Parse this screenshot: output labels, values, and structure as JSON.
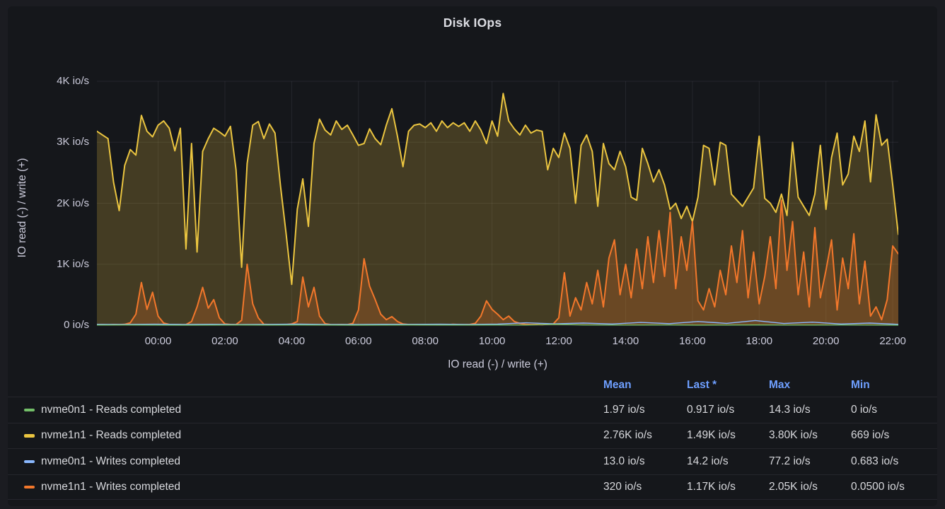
{
  "panel": {
    "title": "Disk IOps"
  },
  "chart": {
    "y_axis": {
      "title": "IO read (-) / write (+)",
      "ticks": [
        "4K io/s",
        "3K io/s",
        "2K io/s",
        "1K io/s",
        "0 io/s"
      ]
    },
    "x_axis": {
      "title": "IO read (-) / write (+)",
      "ticks": [
        "00:00",
        "02:00",
        "04:00",
        "06:00",
        "08:00",
        "10:00",
        "12:00",
        "14:00",
        "16:00",
        "18:00",
        "20:00",
        "22:00"
      ]
    }
  },
  "chart_data": {
    "type": "area",
    "title": "Disk IOps",
    "xlabel": "IO read (-) / write (+)",
    "ylabel": "IO read (-) / write (+)",
    "y_unit": "io/s",
    "ylim": [
      0,
      4000
    ],
    "y_tick_values": [
      0,
      1000,
      2000,
      3000,
      4000
    ],
    "x_range_hours": [
      -1.8333,
      22.1667
    ],
    "x_tick_hours": [
      0,
      2,
      4,
      6,
      8,
      10,
      12,
      14,
      16,
      18,
      20,
      22
    ],
    "x_tick_labels": [
      "00:00",
      "02:00",
      "04:00",
      "06:00",
      "08:00",
      "10:00",
      "12:00",
      "14:00",
      "16:00",
      "18:00",
      "20:00",
      "22:00"
    ],
    "grid": true,
    "legend_position": "bottom-table",
    "fill_opacity": 0.22,
    "series": [
      {
        "name": "nvme0n1 - Reads completed",
        "color": "#73BF69",
        "draw_order": 4,
        "line_width": 1.4,
        "fill": false,
        "values": [
          2,
          3,
          2,
          1,
          2,
          4,
          2,
          3,
          2,
          1,
          2,
          3,
          2,
          2,
          3,
          2,
          14,
          3,
          2,
          2,
          3,
          1,
          2,
          3,
          2,
          2,
          3,
          2,
          1
        ]
      },
      {
        "name": "nvme1n1 - Reads completed",
        "color": "#EBC540",
        "draw_order": 1,
        "line_width": 2,
        "fill": true,
        "values": [
          3180,
          3120,
          3060,
          2340,
          1880,
          2620,
          2880,
          2790,
          3440,
          3180,
          3090,
          3280,
          3350,
          3230,
          2860,
          3230,
          1250,
          2980,
          1200,
          2850,
          3060,
          3230,
          3170,
          3100,
          3260,
          2550,
          950,
          2650,
          3280,
          3340,
          3060,
          3300,
          3150,
          2280,
          1500,
          669,
          1900,
          2400,
          1620,
          2980,
          3380,
          3200,
          3120,
          3350,
          3210,
          3280,
          3120,
          2950,
          2980,
          3220,
          3060,
          2960,
          3280,
          3550,
          3100,
          2600,
          3180,
          3280,
          3300,
          3240,
          3320,
          3180,
          3350,
          3240,
          3320,
          3260,
          3320,
          3180,
          3350,
          3200,
          2980,
          3350,
          3100,
          3800,
          3350,
          3220,
          3120,
          3280,
          3150,
          3200,
          3180,
          2550,
          2900,
          2750,
          3150,
          2900,
          2000,
          2950,
          3120,
          2850,
          1950,
          2980,
          2650,
          2550,
          2850,
          2600,
          2100,
          2050,
          2900,
          2650,
          2350,
          2550,
          2300,
          1900,
          2000,
          1750,
          1950,
          1700,
          2100,
          2950,
          2900,
          2300,
          3000,
          2950,
          2150,
          2050,
          1950,
          2100,
          2250,
          3100,
          2080,
          2000,
          1850,
          2150,
          1800,
          3000,
          2100,
          1950,
          1800,
          2150,
          2950,
          1900,
          2750,
          3150,
          2300,
          2480,
          3100,
          2850,
          3350,
          2350,
          3450,
          2950,
          3050,
          2300,
          1490
        ]
      },
      {
        "name": "nvme0n1 - Writes completed",
        "color": "#8AB8FF",
        "draw_order": 3,
        "line_width": 1.4,
        "fill": false,
        "values": [
          14,
          12,
          16,
          13,
          15,
          11,
          14,
          17,
          13,
          12,
          15,
          14,
          16,
          12,
          18,
          40,
          22,
          35,
          20,
          45,
          25,
          60,
          30,
          77,
          28,
          50,
          20,
          35,
          14
        ]
      },
      {
        "name": "nvme1n1 - Writes completed",
        "color": "#F2772B",
        "draw_order": 2,
        "line_width": 2,
        "fill": true,
        "values": [
          8,
          10,
          6,
          12,
          9,
          14,
          40,
          180,
          700,
          260,
          540,
          150,
          35,
          12,
          10,
          9,
          11,
          60,
          300,
          620,
          280,
          420,
          120,
          20,
          12,
          10,
          80,
          1000,
          350,
          120,
          15,
          10,
          8,
          12,
          10,
          20,
          60,
          790,
          300,
          620,
          150,
          25,
          10,
          8,
          12,
          9,
          30,
          250,
          1090,
          640,
          420,
          180,
          90,
          140,
          60,
          20,
          10,
          12,
          9,
          11,
          8,
          10,
          12,
          9,
          14,
          10,
          8,
          12,
          30,
          150,
          400,
          260,
          180,
          90,
          150,
          60,
          30,
          15,
          10,
          12,
          9,
          14,
          20,
          120,
          860,
          150,
          450,
          250,
          700,
          350,
          900,
          300,
          1100,
          1400,
          500,
          1000,
          450,
          1250,
          600,
          1450,
          700,
          1550,
          800,
          1850,
          600,
          1450,
          900,
          1700,
          400,
          250,
          600,
          300,
          900,
          500,
          1300,
          700,
          1550,
          450,
          1200,
          350,
          800,
          1450,
          600,
          2050,
          900,
          1700,
          500,
          1200,
          300,
          1600,
          450,
          900,
          1400,
          250,
          1100,
          600,
          1500,
          350,
          1050,
          150,
          300,
          90,
          420,
          1300,
          1170
        ]
      }
    ]
  },
  "legend": {
    "columns": [
      "Mean",
      "Last *",
      "Max",
      "Min"
    ],
    "rows": [
      {
        "label": "nvme0n1 - Reads completed",
        "color": "#73BF69",
        "mean": "1.97 io/s",
        "last": "0.917 io/s",
        "max": "14.3 io/s",
        "min": "0 io/s"
      },
      {
        "label": "nvme1n1 - Reads completed",
        "color": "#EBC540",
        "mean": "2.76K io/s",
        "last": "1.49K io/s",
        "max": "3.80K io/s",
        "min": "669 io/s"
      },
      {
        "label": "nvme0n1 - Writes completed",
        "color": "#8AB8FF",
        "mean": "13.0 io/s",
        "last": "14.2 io/s",
        "max": "77.2 io/s",
        "min": "0.683 io/s"
      },
      {
        "label": "nvme1n1 - Writes completed",
        "color": "#F2772B",
        "mean": "320 io/s",
        "last": "1.17K io/s",
        "max": "2.05K io/s",
        "min": "0.0500 io/s"
      }
    ]
  },
  "colors": {
    "page_bg": "#1b1c21",
    "panel_bg": "#15171b",
    "text_primary": "#d8d9dd",
    "text_axis": "#ccccdc",
    "grid_line": "rgba(204,204,220,0.09)",
    "header_blue": "#6e9fff"
  }
}
